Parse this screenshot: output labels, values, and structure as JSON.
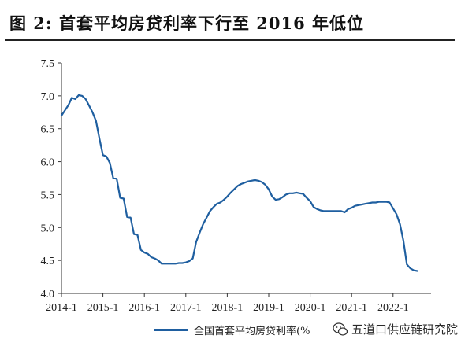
{
  "title": "图  2:  首套平均房贷利率下行至 2016 年低位",
  "legend_label": "全国首套平均房贷利率(%",
  "watermark_text": "五道口供应链研究院",
  "watermark_icon": "wechat-icon",
  "line_color": "#1f5fa0",
  "chart_data": {
    "type": "line",
    "title": "图  2:  首套平均房贷利率下行至 2016 年低位",
    "xlabel": "",
    "ylabel": "",
    "ylim": [
      4.0,
      7.5
    ],
    "xlim": [
      "2014-01",
      "2022-12"
    ],
    "grid": false,
    "legend_position": "bottom",
    "y_ticks": [
      "4.0",
      "4.5",
      "5.0",
      "5.5",
      "6.0",
      "6.5",
      "7.0",
      "7.5"
    ],
    "x_ticks": [
      "2014-1",
      "2015-1",
      "2016-1",
      "2017-1",
      "2018-1",
      "2019-1",
      "2020-1",
      "2021-1",
      "2022-1"
    ],
    "series": [
      {
        "name": "全国首套平均房贷利率(%",
        "x": [
          "2014-01",
          "2014-02",
          "2014-03",
          "2014-04",
          "2014-05",
          "2014-06",
          "2014-07",
          "2014-08",
          "2014-09",
          "2014-10",
          "2014-11",
          "2014-12",
          "2015-01",
          "2015-02",
          "2015-03",
          "2015-04",
          "2015-05",
          "2015-06",
          "2015-07",
          "2015-08",
          "2015-09",
          "2015-10",
          "2015-11",
          "2015-12",
          "2016-01",
          "2016-02",
          "2016-03",
          "2016-04",
          "2016-05",
          "2016-06",
          "2016-07",
          "2016-08",
          "2016-09",
          "2016-10",
          "2016-11",
          "2016-12",
          "2017-01",
          "2017-02",
          "2017-03",
          "2017-04",
          "2017-05",
          "2017-06",
          "2017-07",
          "2017-08",
          "2017-09",
          "2017-10",
          "2017-11",
          "2017-12",
          "2018-01",
          "2018-02",
          "2018-03",
          "2018-04",
          "2018-05",
          "2018-06",
          "2018-07",
          "2018-08",
          "2018-09",
          "2018-10",
          "2018-11",
          "2018-12",
          "2019-01",
          "2019-02",
          "2019-03",
          "2019-04",
          "2019-05",
          "2019-06",
          "2019-07",
          "2019-08",
          "2019-09",
          "2019-10",
          "2019-11",
          "2019-12",
          "2020-01",
          "2020-02",
          "2020-03",
          "2020-04",
          "2020-05",
          "2020-06",
          "2020-07",
          "2020-08",
          "2020-09",
          "2020-10",
          "2020-11",
          "2020-12",
          "2021-01",
          "2021-02",
          "2021-03",
          "2021-04",
          "2021-05",
          "2021-06",
          "2021-07",
          "2021-08",
          "2021-09",
          "2021-10",
          "2021-11",
          "2021-12",
          "2022-01",
          "2022-02",
          "2022-03",
          "2022-04",
          "2022-05",
          "2022-06",
          "2022-07",
          "2022-08"
        ],
        "values": [
          6.7,
          6.78,
          6.86,
          6.97,
          6.95,
          7.01,
          7.0,
          6.95,
          6.85,
          6.75,
          6.62,
          6.35,
          6.1,
          6.08,
          5.98,
          5.75,
          5.74,
          5.45,
          5.44,
          5.16,
          5.15,
          4.9,
          4.89,
          4.66,
          4.62,
          4.6,
          4.55,
          4.53,
          4.5,
          4.45,
          4.45,
          4.45,
          4.45,
          4.45,
          4.46,
          4.46,
          4.47,
          4.49,
          4.53,
          4.78,
          4.92,
          5.05,
          5.15,
          5.25,
          5.31,
          5.36,
          5.38,
          5.42,
          5.47,
          5.53,
          5.58,
          5.63,
          5.66,
          5.68,
          5.7,
          5.71,
          5.72,
          5.71,
          5.69,
          5.65,
          5.58,
          5.47,
          5.42,
          5.43,
          5.46,
          5.5,
          5.52,
          5.52,
          5.53,
          5.52,
          5.51,
          5.45,
          5.4,
          5.31,
          5.28,
          5.26,
          5.25,
          5.25,
          5.25,
          5.25,
          5.25,
          5.25,
          5.23,
          5.28,
          5.3,
          5.33,
          5.34,
          5.35,
          5.36,
          5.37,
          5.38,
          5.38,
          5.39,
          5.39,
          5.39,
          5.38,
          5.29,
          5.2,
          5.05,
          4.8,
          4.44,
          4.38,
          4.35,
          4.34
        ]
      }
    ]
  }
}
